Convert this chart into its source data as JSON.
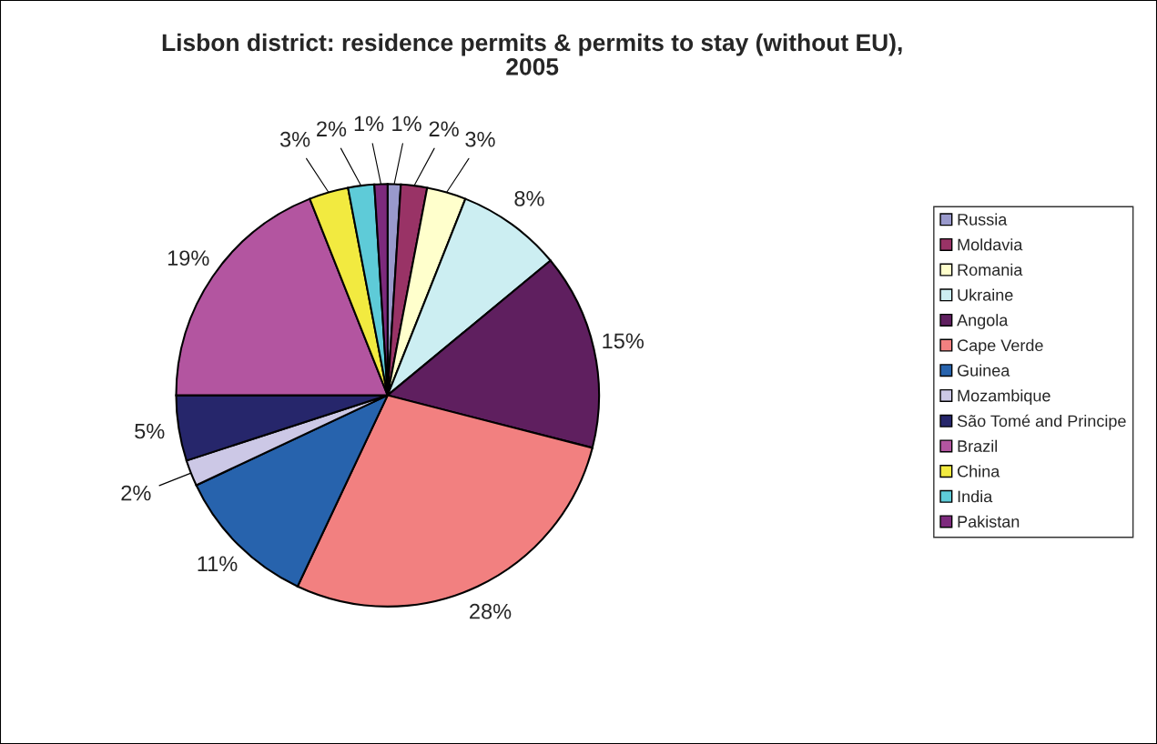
{
  "chart_data": {
    "type": "pie",
    "title": "Lisbon district: residence permits & permits to stay (without EU),\n2005",
    "categories": [
      "Russia",
      "Moldavia",
      "Romania",
      "Ukraine",
      "Angola",
      "Cape Verde",
      "Guinea",
      "Mozambique",
      "São Tomé and Principe",
      "Brazil",
      "China",
      "India",
      "Pakistan"
    ],
    "values": [
      1,
      2,
      3,
      8,
      15,
      28,
      11,
      2,
      5,
      19,
      3,
      2,
      1
    ],
    "colors": [
      "#9999cc",
      "#993366",
      "#ffffcc",
      "#cceef2",
      "#5f1f5f",
      "#f28080",
      "#2763ad",
      "#ccc8e6",
      "#26266b",
      "#b355a0",
      "#f2ea40",
      "#5ecbd8",
      "#7d2a7d"
    ],
    "legend": "right",
    "value_labels": [
      "1%",
      "2%",
      "3%",
      "8%",
      "15%",
      "28%",
      "11%",
      "2%",
      "5%",
      "19%",
      "3%",
      "2%",
      "1%"
    ]
  }
}
